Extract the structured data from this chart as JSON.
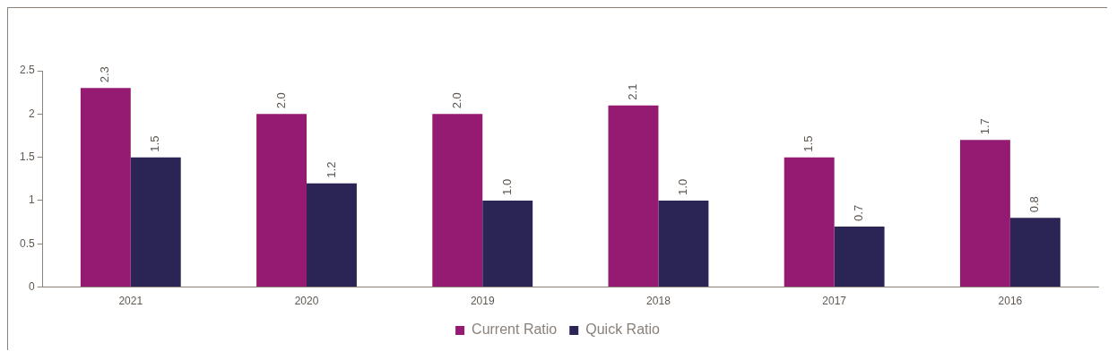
{
  "chart_data": {
    "type": "bar",
    "categories": [
      "2021",
      "2020",
      "2019",
      "2018",
      "2017",
      "2016"
    ],
    "series": [
      {
        "name": "Current Ratio",
        "color": "#951b72",
        "values": [
          2.3,
          2.0,
          2.0,
          2.1,
          1.5,
          1.7
        ],
        "value_labels": [
          "2.3",
          "2.0",
          "2.0",
          "2.1",
          "1.5",
          "1.7"
        ]
      },
      {
        "name": "Quick Ratio",
        "color": "#2b2555",
        "values": [
          1.5,
          1.2,
          1.0,
          1.0,
          0.7,
          0.8
        ],
        "value_labels": [
          "1.5",
          "1.2",
          "1.0",
          "1.0",
          "0.7",
          "0.8"
        ]
      }
    ],
    "ylim": [
      0,
      2.5
    ],
    "yticks": [
      0,
      0.5,
      1,
      1.5,
      2,
      2.5
    ],
    "grid": false,
    "legend": "bottom"
  }
}
